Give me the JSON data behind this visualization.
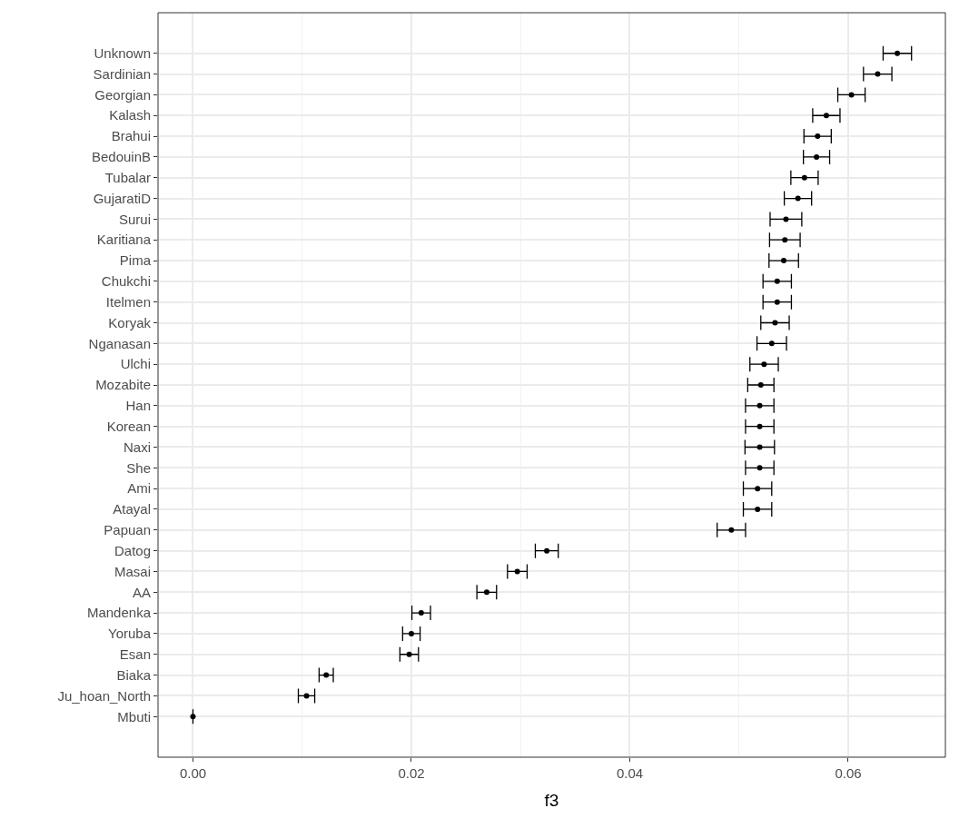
{
  "chart_data": {
    "type": "scatter",
    "orientation": "horizontal",
    "xlabel": "f3",
    "categories": [
      "Unknown",
      "Sardinian",
      "Georgian",
      "Kalash",
      "Brahui",
      "BedouinB",
      "Tubalar",
      "GujaratiD",
      "Surui",
      "Karitiana",
      "Pima",
      "Chukchi",
      "Itelmen",
      "Koryak",
      "Nganasan",
      "Ulchi",
      "Mozabite",
      "Han",
      "Korean",
      "Naxi",
      "She",
      "Ami",
      "Atayal",
      "Papuan",
      "Datog",
      "Masai",
      "AA",
      "Mandenka",
      "Yoruba",
      "Esan",
      "Biaka",
      "Ju_hoan_North",
      "Mbuti"
    ],
    "values": [
      0.0645,
      0.0627,
      0.0603,
      0.058,
      0.0572,
      0.0571,
      0.056,
      0.0554,
      0.0543,
      0.0542,
      0.0541,
      0.0535,
      0.0535,
      0.0533,
      0.053,
      0.0523,
      0.052,
      0.0519,
      0.0519,
      0.0519,
      0.0519,
      0.0517,
      0.0517,
      0.0493,
      0.0324,
      0.0297,
      0.0269,
      0.0209,
      0.02,
      0.0198,
      0.0122,
      0.0104,
      0.0
    ],
    "errors": [
      0.0013,
      0.0013,
      0.00125,
      0.00125,
      0.00125,
      0.0012,
      0.00125,
      0.00125,
      0.00145,
      0.0014,
      0.00135,
      0.0013,
      0.0013,
      0.0013,
      0.00135,
      0.0013,
      0.0012,
      0.0013,
      0.0013,
      0.00135,
      0.0013,
      0.0013,
      0.0013,
      0.0013,
      0.00105,
      0.0009,
      0.0009,
      0.00085,
      0.0008,
      0.00085,
      0.00065,
      0.00075,
      0.0
    ],
    "color": "#000000",
    "marker": "circle",
    "grid": true,
    "xlim": [
      -0.0032,
      0.0689
    ],
    "xticks": [
      {
        "value": 0,
        "label": "0.00"
      },
      {
        "value": 0.02,
        "label": "0.02"
      },
      {
        "value": 0.04,
        "label": "0.04"
      },
      {
        "value": 0.06,
        "label": "0.06"
      }
    ]
  }
}
